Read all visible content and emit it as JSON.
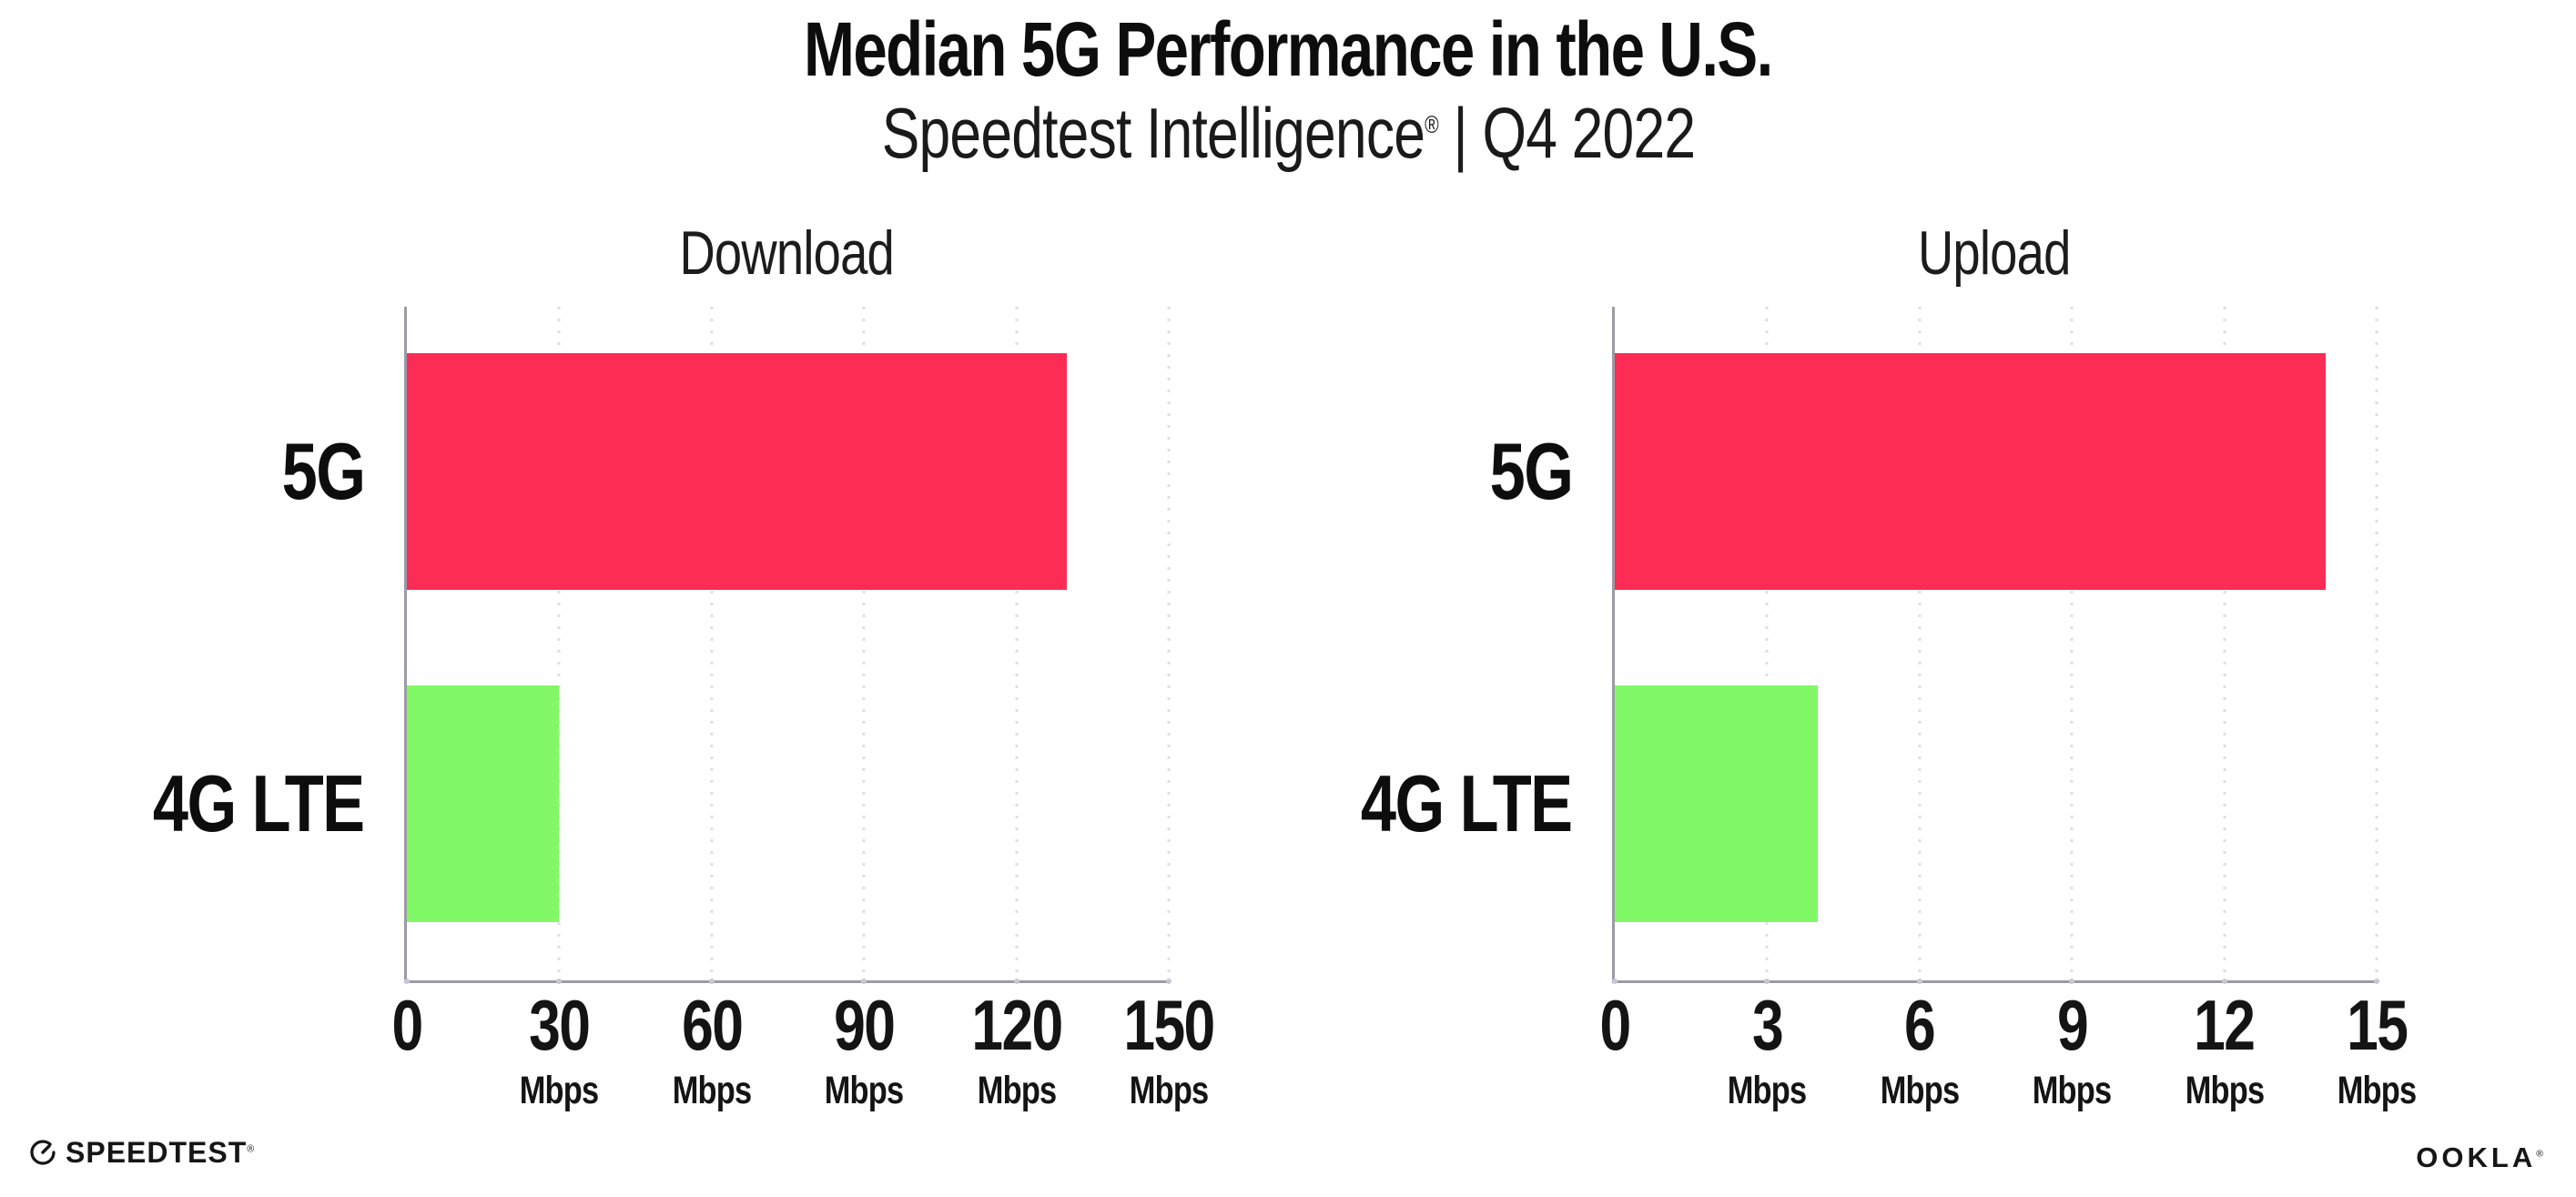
{
  "header": {
    "title": "Median 5G Performance in the U.S.",
    "subtitle_brand": "Speedtest Intelligence",
    "subtitle_reg": "®",
    "subtitle_rest": " | Q4 2022"
  },
  "colors": {
    "bar_5g": "#FC2C55",
    "bar_4g_lte": "#81F967",
    "axis": "#9b9ba4",
    "gridline": "#dedee9",
    "text": "#111111"
  },
  "chart_data": [
    {
      "type": "bar",
      "orientation": "horizontal",
      "title": "Download",
      "categories": [
        "5G",
        "4G LTE"
      ],
      "values": [
        130,
        30
      ],
      "unit": "Mbps",
      "xlim": [
        0,
        150
      ],
      "xticks": [
        0,
        30,
        60,
        90,
        120,
        150
      ],
      "colors": [
        "#FC2C55",
        "#81F967"
      ],
      "grid": "dotted-vertical",
      "legend": "none"
    },
    {
      "type": "bar",
      "orientation": "horizontal",
      "title": "Upload",
      "categories": [
        "5G",
        "4G LTE"
      ],
      "values": [
        14,
        4
      ],
      "unit": "Mbps",
      "xlim": [
        0,
        15
      ],
      "xticks": [
        0,
        3,
        6,
        9,
        12,
        15
      ],
      "colors": [
        "#FC2C55",
        "#81F967"
      ],
      "grid": "dotted-vertical",
      "legend": "none"
    }
  ],
  "footer": {
    "speedtest_label": "SPEEDTEST",
    "speedtest_mark": "®",
    "ookla_label": "OOKLA",
    "ookla_mark": "®"
  }
}
